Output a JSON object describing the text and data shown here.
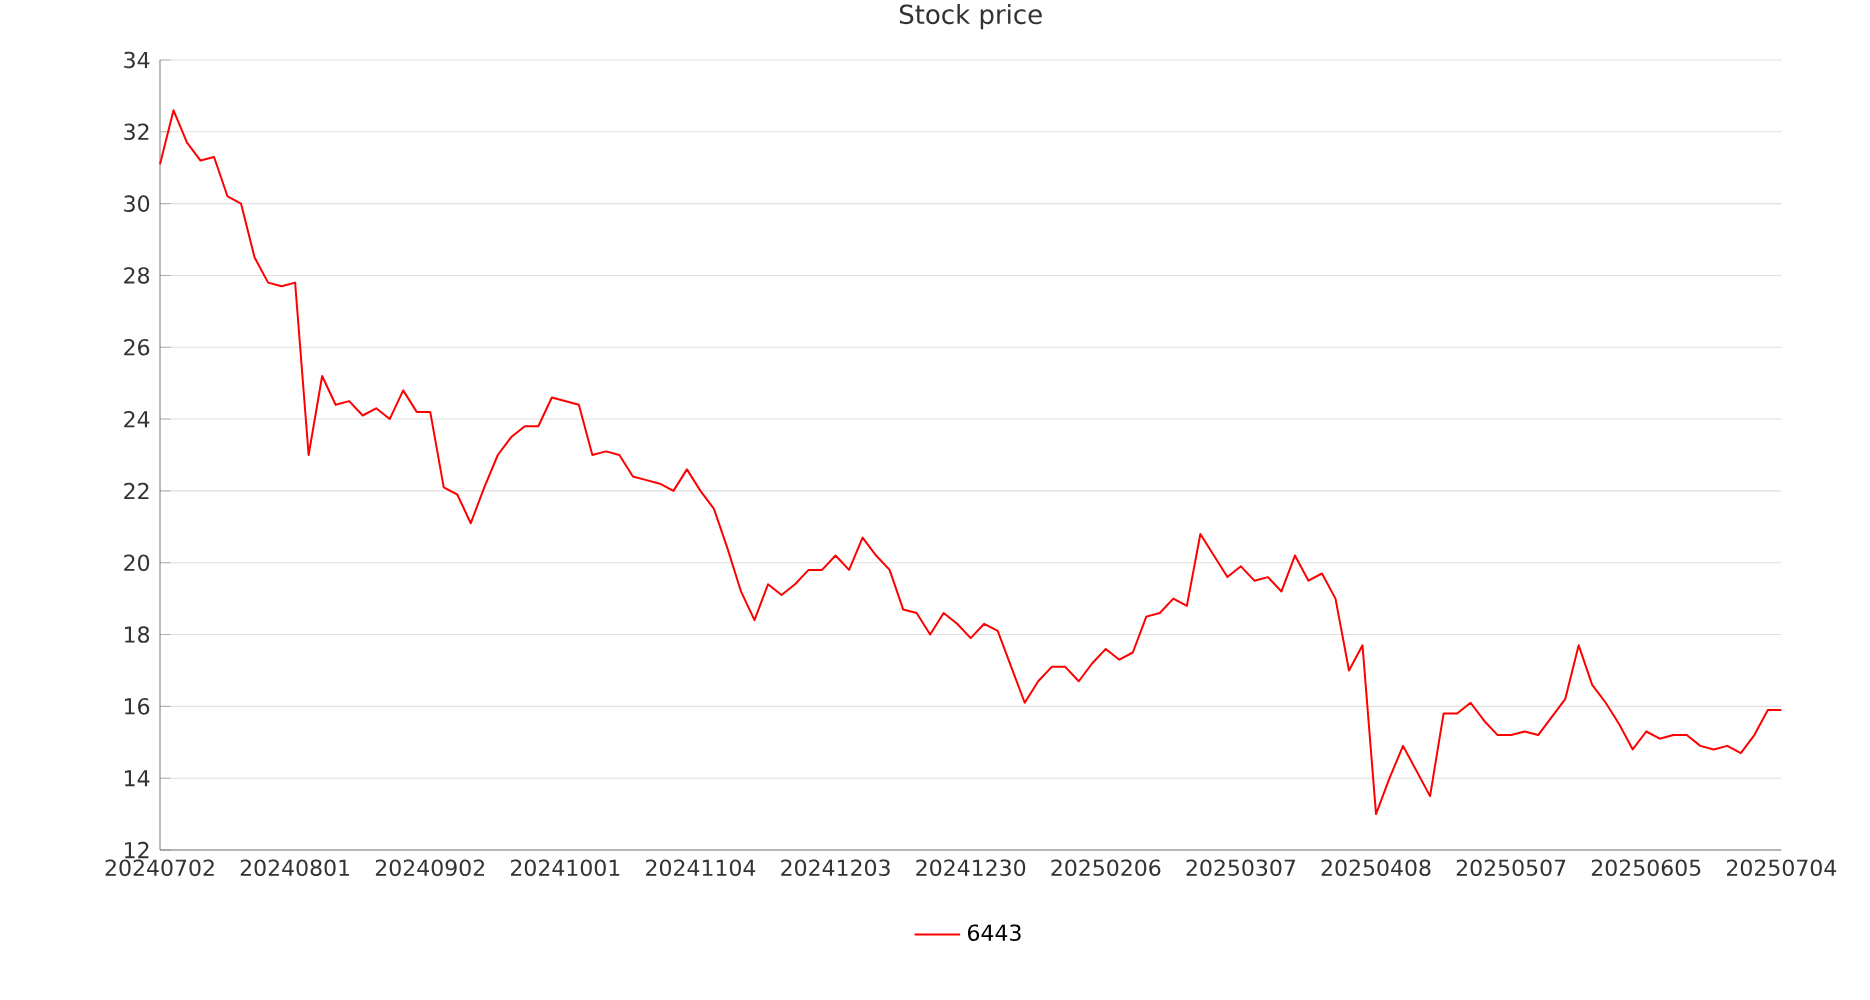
{
  "chart_data": {
    "type": "line",
    "title": "Stock price",
    "categories": [
      "20240702",
      null,
      null,
      null,
      null,
      null,
      null,
      null,
      null,
      null,
      "20240801",
      null,
      null,
      null,
      null,
      null,
      null,
      null,
      null,
      null,
      "20240902",
      null,
      null,
      null,
      null,
      null,
      null,
      null,
      null,
      null,
      "20241001",
      null,
      null,
      null,
      null,
      null,
      null,
      null,
      null,
      null,
      "20241104",
      null,
      null,
      null,
      null,
      null,
      null,
      null,
      null,
      null,
      "20241203",
      null,
      null,
      null,
      null,
      null,
      null,
      null,
      null,
      null,
      "20241230",
      null,
      null,
      null,
      null,
      null,
      null,
      null,
      null,
      null,
      "20250206",
      null,
      null,
      null,
      null,
      null,
      null,
      null,
      null,
      null,
      "20250307",
      null,
      null,
      null,
      null,
      null,
      null,
      null,
      null,
      null,
      "20250408",
      null,
      null,
      null,
      null,
      null,
      null,
      null,
      null,
      null,
      "20250507",
      null,
      null,
      null,
      null,
      null,
      null,
      null,
      null,
      null,
      "20250605",
      null,
      null,
      null,
      null,
      null,
      null,
      null,
      null,
      null,
      "20250704"
    ],
    "series": [
      {
        "name": "6443",
        "color": "#ff0000",
        "values": [
          31.1,
          32.6,
          31.7,
          31.2,
          31.3,
          30.2,
          30.0,
          28.5,
          27.8,
          27.7,
          27.8,
          23.0,
          25.2,
          24.4,
          24.5,
          24.1,
          24.3,
          24.0,
          24.8,
          24.2,
          24.2,
          22.1,
          21.9,
          21.1,
          22.1,
          23.0,
          23.5,
          23.8,
          23.8,
          24.6,
          24.5,
          24.4,
          23.0,
          23.1,
          23.0,
          22.4,
          22.3,
          22.2,
          22.0,
          22.6,
          22.0,
          21.5,
          20.4,
          19.2,
          18.4,
          19.4,
          19.1,
          19.4,
          19.8,
          19.8,
          20.2,
          19.8,
          20.7,
          20.2,
          19.8,
          18.7,
          18.6,
          18.0,
          18.6,
          18.3,
          17.9,
          18.3,
          18.1,
          17.1,
          16.1,
          16.7,
          17.1,
          17.1,
          16.7,
          17.2,
          17.6,
          17.3,
          17.5,
          18.5,
          18.6,
          19.0,
          18.8,
          20.8,
          20.2,
          19.6,
          19.9,
          19.5,
          19.6,
          19.2,
          20.2,
          19.5,
          19.7,
          19.0,
          17.0,
          17.7,
          13.0,
          14.0,
          14.9,
          14.2,
          13.5,
          15.8,
          15.8,
          16.1,
          15.6,
          15.2,
          15.2,
          15.3,
          15.2,
          15.7,
          16.2,
          17.7,
          16.6,
          16.1,
          15.5,
          14.8,
          15.3,
          15.1,
          15.2,
          15.2,
          14.9,
          14.8,
          14.9,
          14.7,
          15.2,
          15.9,
          15.9
        ]
      }
    ],
    "ylim": [
      12,
      34
    ],
    "yticks": [
      12,
      14,
      16,
      18,
      20,
      22,
      24,
      26,
      28,
      30,
      32,
      34
    ],
    "grid": "y",
    "legend": "bottom",
    "marker": "none",
    "line_style": "solid"
  }
}
